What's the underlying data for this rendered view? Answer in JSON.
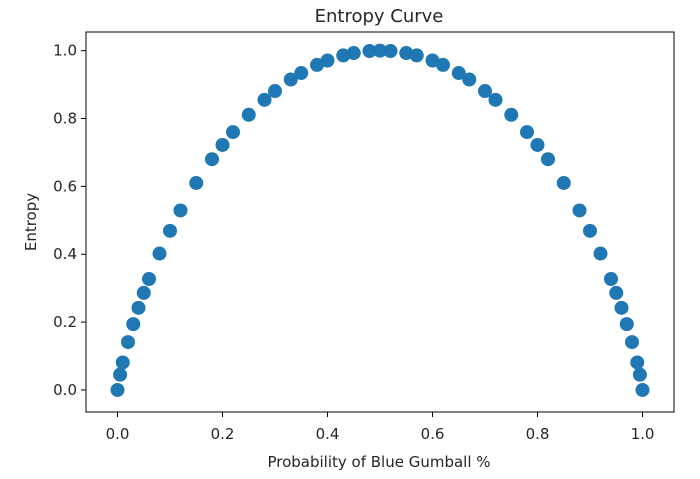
{
  "chart_data": {
    "type": "scatter",
    "title": "Entropy Curve",
    "xlabel": "Probability of Blue Gumball %",
    "ylabel": "Entropy",
    "xlim": [
      -0.06,
      1.06
    ],
    "ylim": [
      -0.065,
      1.055
    ],
    "xticks": [
      0.0,
      0.2,
      0.4,
      0.6,
      0.8,
      1.0
    ],
    "xtick_labels": [
      "0.0",
      "0.2",
      "0.4",
      "0.6",
      "0.8",
      "1.0"
    ],
    "yticks": [
      0.0,
      0.2,
      0.4,
      0.6,
      0.8,
      1.0
    ],
    "ytick_labels": [
      "0.0",
      "0.2",
      "0.4",
      "0.6",
      "0.8",
      "1.0"
    ],
    "grid": false,
    "series": [
      {
        "color": "#1f77b4",
        "x": [
          0.0,
          0.005,
          0.01,
          0.02,
          0.03,
          0.04,
          0.05,
          0.06,
          0.08,
          0.1,
          0.12,
          0.15,
          0.18,
          0.2,
          0.22,
          0.25,
          0.28,
          0.3,
          0.33,
          0.35,
          0.38,
          0.4,
          0.43,
          0.45,
          0.48,
          0.5,
          0.52,
          0.55,
          0.57,
          0.6,
          0.62,
          0.65,
          0.67,
          0.7,
          0.72,
          0.75,
          0.78,
          0.8,
          0.82,
          0.85,
          0.88,
          0.9,
          0.92,
          0.94,
          0.95,
          0.96,
          0.97,
          0.98,
          0.99,
          0.995,
          1.0
        ],
        "y": [
          0.0,
          0.045,
          0.081,
          0.141,
          0.194,
          0.242,
          0.286,
          0.327,
          0.402,
          0.469,
          0.529,
          0.61,
          0.68,
          0.722,
          0.76,
          0.811,
          0.855,
          0.881,
          0.915,
          0.934,
          0.958,
          0.971,
          0.986,
          0.993,
          0.999,
          1.0,
          0.999,
          0.993,
          0.986,
          0.971,
          0.958,
          0.934,
          0.915,
          0.881,
          0.855,
          0.811,
          0.76,
          0.722,
          0.68,
          0.61,
          0.529,
          0.469,
          0.402,
          0.327,
          0.286,
          0.242,
          0.194,
          0.141,
          0.081,
          0.045,
          0.0
        ]
      }
    ]
  }
}
